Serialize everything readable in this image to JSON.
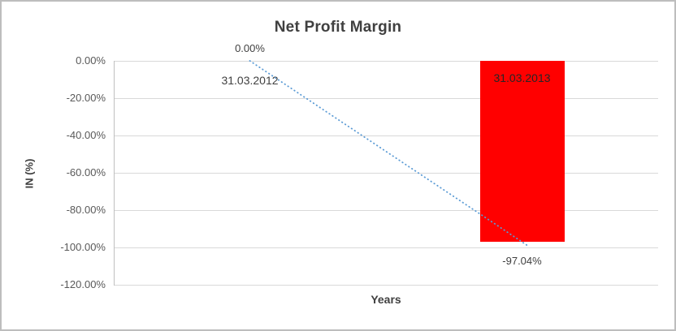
{
  "chart_data": {
    "type": "bar",
    "title": "Net Profit Margin",
    "xlabel": "Years",
    "ylabel": "IN (%)",
    "categories": [
      "31.03.2012",
      "31.03.2013"
    ],
    "values": [
      0,
      -97.04
    ],
    "value_labels": [
      "0.00%",
      "-97.04%"
    ],
    "ylim": [
      -120,
      0
    ],
    "ytick_values": [
      0,
      -20,
      -40,
      -60,
      -80,
      -100,
      -120
    ],
    "ytick_labels": [
      "0.00%",
      "-20.00%",
      "-40.00%",
      "-60.00%",
      "-80.00%",
      "-100.00%",
      "-120.00%"
    ],
    "grid": true,
    "legend": "none",
    "trendline": {
      "style": "dotted",
      "from_index": 0,
      "to_index": 1
    },
    "colors": {
      "bar": "#ff0000",
      "bar_label": "#262626",
      "label": "#404040",
      "tick": "#595959",
      "gridline": "#d9d9d9",
      "axis": "#bfbfbf",
      "trendline": "#5b9bd5",
      "title": "#404040",
      "border": "#bdbdbd"
    }
  }
}
